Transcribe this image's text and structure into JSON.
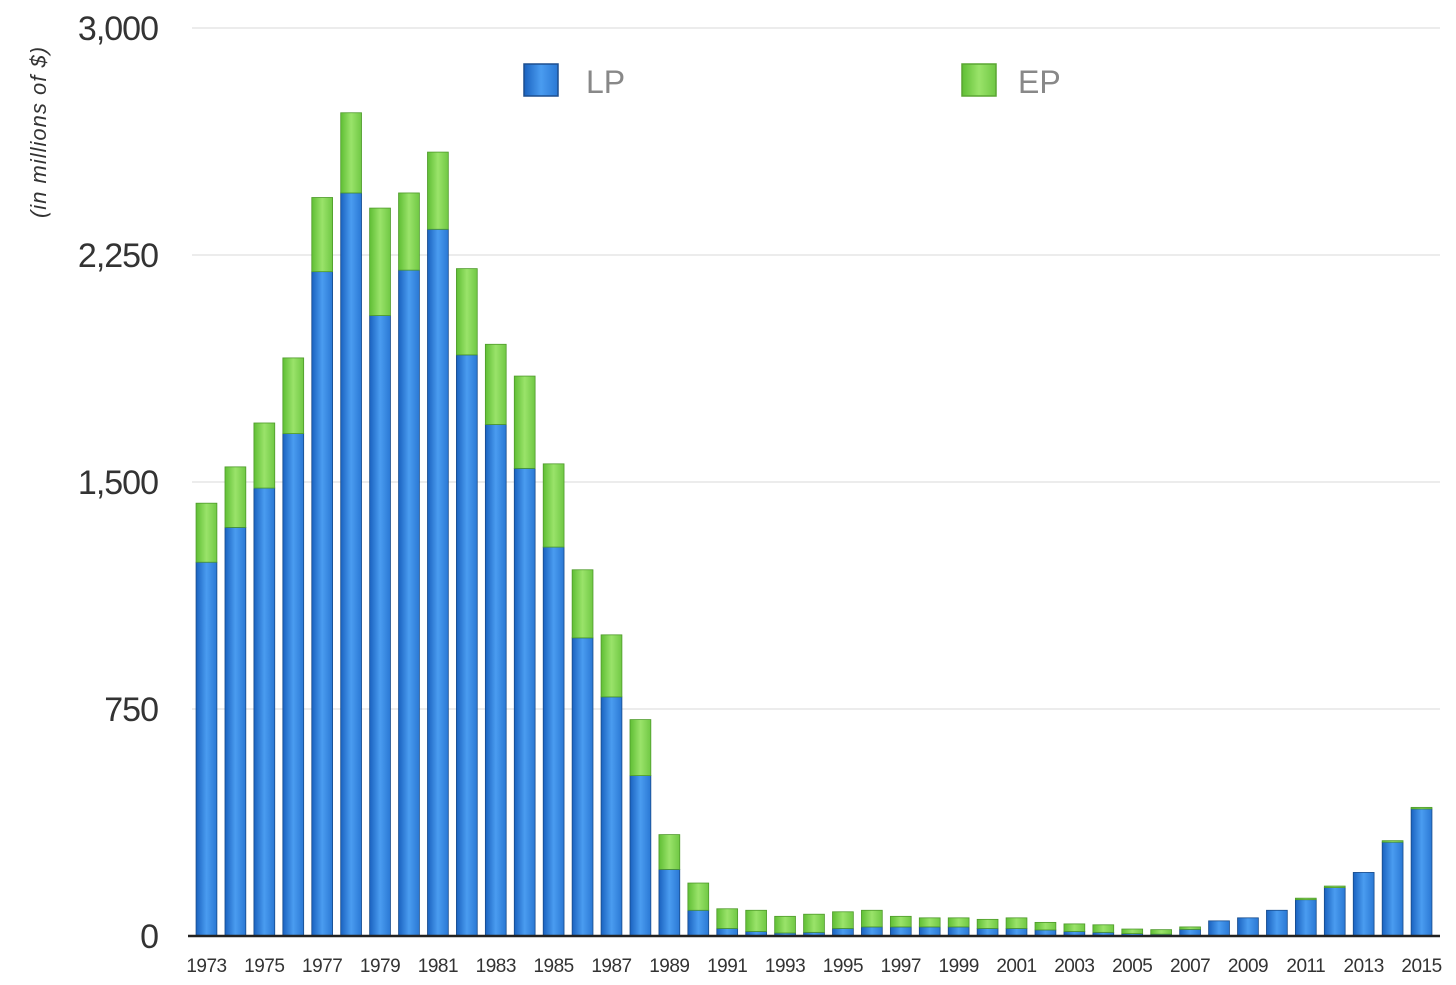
{
  "chart_data": {
    "type": "bar",
    "stacked": true,
    "ylabel": "(in millions of $)",
    "ylim": [
      0,
      3000
    ],
    "yticks": [
      0,
      750,
      1500,
      2250,
      3000
    ],
    "ytick_labels": [
      "0",
      "750",
      "1,500",
      "2,250",
      "3,000"
    ],
    "grid": true,
    "legend_position": "top-center",
    "categories": [
      "1973",
      "1974",
      "1975",
      "1976",
      "1977",
      "1978",
      "1979",
      "1980",
      "1981",
      "1982",
      "1983",
      "1984",
      "1985",
      "1986",
      "1987",
      "1988",
      "1989",
      "1990",
      "1991",
      "1992",
      "1993",
      "1994",
      "1995",
      "1996",
      "1997",
      "1998",
      "1999",
      "2000",
      "2001",
      "2002",
      "2003",
      "2004",
      "2005",
      "2006",
      "2007",
      "2008",
      "2009",
      "2010",
      "2011",
      "2012",
      "2013",
      "2014",
      "2015"
    ],
    "xtick_labels": [
      "1973",
      "1975",
      "1977",
      "1979",
      "1981",
      "1983",
      "1985",
      "1987",
      "1989",
      "1991",
      "1993",
      "1995",
      "1997",
      "1999",
      "2001",
      "2003",
      "2005",
      "2007",
      "2009",
      "2011",
      "2013",
      "2015"
    ],
    "series": [
      {
        "name": "LP",
        "color": "#2f80d8",
        "values": [
          1235,
          1350,
          1480,
          1660,
          2195,
          2455,
          2050,
          2200,
          2335,
          1920,
          1690,
          1545,
          1285,
          985,
          790,
          530,
          220,
          85,
          25,
          15,
          10,
          12,
          25,
          30,
          30,
          30,
          30,
          25,
          25,
          20,
          15,
          12,
          8,
          6,
          22,
          50,
          60,
          85,
          120,
          160,
          210,
          310,
          420
        ]
      },
      {
        "name": "EP",
        "color": "#7ed348",
        "values": [
          195,
          200,
          215,
          250,
          245,
          265,
          355,
          255,
          255,
          285,
          265,
          305,
          275,
          225,
          205,
          185,
          115,
          90,
          65,
          70,
          55,
          60,
          55,
          55,
          35,
          30,
          30,
          30,
          35,
          25,
          25,
          25,
          15,
          15,
          8,
          0,
          0,
          0,
          5,
          5,
          0,
          5,
          5
        ]
      }
    ]
  }
}
